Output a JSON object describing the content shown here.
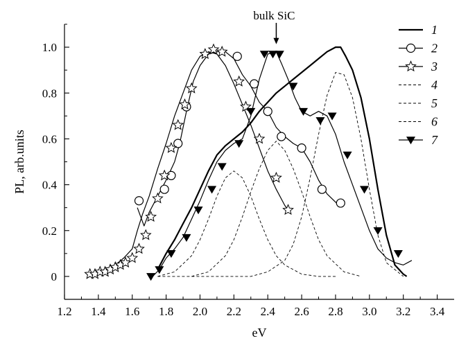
{
  "chart_data": {
    "type": "line",
    "title": "",
    "xlabel": "eV",
    "ylabel": "PL, arb.units",
    "xlim": [
      1.2,
      3.5
    ],
    "ylim": [
      -0.1,
      1.1
    ],
    "x_ticks": [
      1.2,
      1.4,
      1.6,
      1.8,
      2.0,
      2.2,
      2.4,
      2.6,
      2.8,
      3.0,
      3.2,
      3.4
    ],
    "x_tick_labels": [
      "1.2",
      "1.4",
      "1.6",
      "1.8",
      "2.0",
      "2.2",
      "2.4",
      "2.6",
      "2.8",
      "3.0",
      "3.2",
      "3.4"
    ],
    "y_ticks": [
      0,
      0.2,
      0.4,
      0.6,
      0.8,
      1.0
    ],
    "y_tick_labels": [
      "0",
      "0.2",
      "0.4",
      "0.6",
      "0.8",
      "1.0"
    ],
    "grid": false,
    "legend_position": "top-right",
    "annotation": {
      "text": "bulk SiC",
      "x": 2.45,
      "y": 1.01
    },
    "series": [
      {
        "name": "1",
        "style": "solid-thick",
        "x": [
          1.75,
          1.8,
          1.85,
          1.9,
          1.95,
          2.0,
          2.05,
          2.1,
          2.15,
          2.2,
          2.25,
          2.3,
          2.35,
          2.4,
          2.45,
          2.5,
          2.55,
          2.6,
          2.65,
          2.7,
          2.75,
          2.8,
          2.83,
          2.86,
          2.9,
          2.95,
          3.0,
          3.05,
          3.1,
          3.15,
          3.2,
          3.22
        ],
        "y": [
          0.03,
          0.1,
          0.16,
          0.23,
          0.3,
          0.38,
          0.46,
          0.53,
          0.57,
          0.6,
          0.63,
          0.67,
          0.72,
          0.76,
          0.8,
          0.83,
          0.86,
          0.89,
          0.92,
          0.95,
          0.98,
          1.0,
          1.0,
          0.96,
          0.9,
          0.78,
          0.6,
          0.38,
          0.18,
          0.05,
          0.01,
          0.0
        ]
      },
      {
        "name": "2",
        "style": "circle-marker",
        "x": [
          1.63,
          1.67,
          1.7,
          1.75,
          1.8,
          1.85,
          1.88,
          1.92,
          1.96,
          2.0,
          2.05,
          2.1,
          2.15,
          2.2,
          2.25,
          2.3,
          2.35,
          2.4,
          2.45,
          2.5,
          2.55,
          2.6,
          2.65,
          2.7,
          2.75,
          2.82
        ],
        "y": [
          0.3,
          0.22,
          0.28,
          0.35,
          0.42,
          0.5,
          0.58,
          0.72,
          0.85,
          0.92,
          0.97,
          0.98,
          0.98,
          0.95,
          0.88,
          0.83,
          0.76,
          0.72,
          0.65,
          0.61,
          0.58,
          0.56,
          0.5,
          0.42,
          0.36,
          0.31
        ],
        "markers_x": [
          1.64,
          1.79,
          1.83,
          1.87,
          1.92,
          2.22,
          2.32,
          2.4,
          2.48,
          2.6,
          2.72,
          2.83
        ],
        "markers_y": [
          0.33,
          0.38,
          0.44,
          0.58,
          0.74,
          0.96,
          0.84,
          0.72,
          0.61,
          0.56,
          0.38,
          0.32
        ]
      },
      {
        "name": "3",
        "style": "star-marker",
        "x": [
          1.33,
          1.4,
          1.45,
          1.5,
          1.55,
          1.6,
          1.63,
          1.66,
          1.7,
          1.75,
          1.8,
          1.85,
          1.9,
          1.95,
          2.0,
          2.05,
          2.1,
          2.15,
          2.2,
          2.25,
          2.3,
          2.35,
          2.4,
          2.45,
          2.5,
          2.52
        ],
        "y": [
          0.01,
          0.02,
          0.03,
          0.05,
          0.08,
          0.12,
          0.2,
          0.27,
          0.35,
          0.47,
          0.58,
          0.7,
          0.8,
          0.9,
          0.96,
          0.98,
          0.97,
          0.92,
          0.84,
          0.75,
          0.66,
          0.56,
          0.46,
          0.38,
          0.31,
          0.29
        ],
        "markers_x": [
          1.35,
          1.38,
          1.41,
          1.44,
          1.47,
          1.5,
          1.53,
          1.56,
          1.6,
          1.64,
          1.68,
          1.71,
          1.75,
          1.79,
          1.83,
          1.87,
          1.91,
          1.95,
          2.03,
          2.08,
          2.13,
          2.23,
          2.27,
          2.35,
          2.45,
          2.52
        ],
        "markers_y": [
          0.01,
          0.01,
          0.02,
          0.02,
          0.03,
          0.04,
          0.05,
          0.06,
          0.08,
          0.12,
          0.18,
          0.26,
          0.34,
          0.44,
          0.56,
          0.66,
          0.75,
          0.82,
          0.97,
          0.99,
          0.98,
          0.85,
          0.74,
          0.6,
          0.43,
          0.29
        ]
      },
      {
        "name": "4",
        "style": "dashed",
        "x": [
          1.75,
          1.85,
          1.95,
          2.0,
          2.05,
          2.1,
          2.15,
          2.2,
          2.25,
          2.3,
          2.35,
          2.4,
          2.45,
          2.5,
          2.6,
          2.7,
          2.8
        ],
        "y": [
          0.0,
          0.02,
          0.09,
          0.16,
          0.25,
          0.35,
          0.43,
          0.46,
          0.43,
          0.35,
          0.25,
          0.16,
          0.09,
          0.05,
          0.01,
          0.0,
          0.0
        ]
      },
      {
        "name": "5",
        "style": "dashed",
        "x": [
          1.95,
          2.05,
          2.15,
          2.2,
          2.25,
          2.3,
          2.35,
          2.4,
          2.45,
          2.5,
          2.55,
          2.6,
          2.65,
          2.7,
          2.75,
          2.85,
          2.95
        ],
        "y": [
          0.0,
          0.02,
          0.09,
          0.16,
          0.26,
          0.37,
          0.47,
          0.55,
          0.59,
          0.55,
          0.47,
          0.37,
          0.26,
          0.16,
          0.09,
          0.02,
          0.0
        ]
      },
      {
        "name": "6",
        "style": "dashed",
        "x": [
          1.75,
          2.0,
          2.3,
          2.4,
          2.5,
          2.55,
          2.6,
          2.65,
          2.7,
          2.75,
          2.8,
          2.85,
          2.9,
          2.95,
          3.0,
          3.05,
          3.1,
          3.2
        ],
        "y": [
          0.0,
          0.0,
          0.0,
          0.02,
          0.07,
          0.14,
          0.26,
          0.43,
          0.62,
          0.79,
          0.89,
          0.88,
          0.78,
          0.6,
          0.38,
          0.18,
          0.06,
          0.0
        ]
      },
      {
        "name": "7",
        "style": "triangle-marker",
        "x": [
          1.72,
          1.76,
          1.8,
          1.85,
          1.9,
          1.95,
          2.0,
          2.05,
          2.1,
          2.15,
          2.2,
          2.25,
          2.3,
          2.35,
          2.4,
          2.45,
          2.48,
          2.52,
          2.56,
          2.6,
          2.65,
          2.7,
          2.75,
          2.8,
          2.85,
          2.9,
          2.95,
          3.0,
          3.05,
          3.1,
          3.15,
          3.2,
          3.25
        ],
        "y": [
          0.0,
          0.03,
          0.08,
          0.12,
          0.17,
          0.25,
          0.33,
          0.42,
          0.5,
          0.55,
          0.58,
          0.6,
          0.7,
          0.86,
          0.97,
          0.98,
          0.93,
          0.86,
          0.78,
          0.72,
          0.7,
          0.72,
          0.7,
          0.62,
          0.5,
          0.4,
          0.3,
          0.2,
          0.12,
          0.08,
          0.06,
          0.05,
          0.07
        ],
        "markers_x": [
          1.71,
          1.76,
          1.83,
          1.92,
          1.99,
          2.07,
          2.13,
          2.23,
          2.3,
          2.38,
          2.43,
          2.47,
          2.55,
          2.61,
          2.71,
          2.78,
          2.87,
          2.97,
          3.05,
          3.17
        ],
        "markers_y": [
          0.0,
          0.03,
          0.1,
          0.17,
          0.29,
          0.38,
          0.48,
          0.58,
          0.72,
          0.97,
          0.97,
          0.97,
          0.83,
          0.72,
          0.68,
          0.7,
          0.53,
          0.38,
          0.2,
          0.1
        ]
      }
    ]
  }
}
